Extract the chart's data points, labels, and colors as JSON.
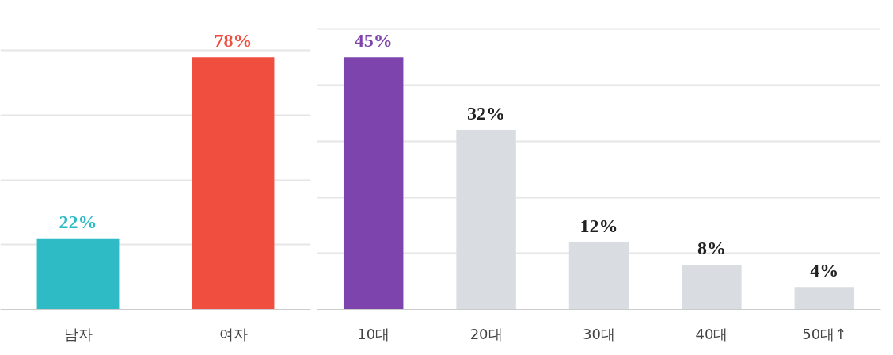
{
  "chart_data": [
    {
      "type": "bar",
      "categories": [
        "남자",
        "여자"
      ],
      "colors": [
        "#2ebbc6",
        "#f04e3e"
      ],
      "values": [
        22,
        78
      ],
      "value_labels": [
        "22%",
        "78%"
      ],
      "grid": "y",
      "tick_labels": "x"
    },
    {
      "type": "bar",
      "categories": [
        "10대",
        "20대",
        "30대",
        "40대",
        "50대↑"
      ],
      "colors": [
        "#7e44ad",
        "#d9dde1",
        "#d9dde1",
        "#d9dde1",
        "#d9dde1"
      ],
      "values": [
        45,
        32,
        12,
        8,
        4
      ],
      "value_labels": [
        "45%",
        "32%",
        "12%",
        "8%",
        "4%"
      ],
      "grid": "y",
      "tick_labels": "x"
    }
  ]
}
